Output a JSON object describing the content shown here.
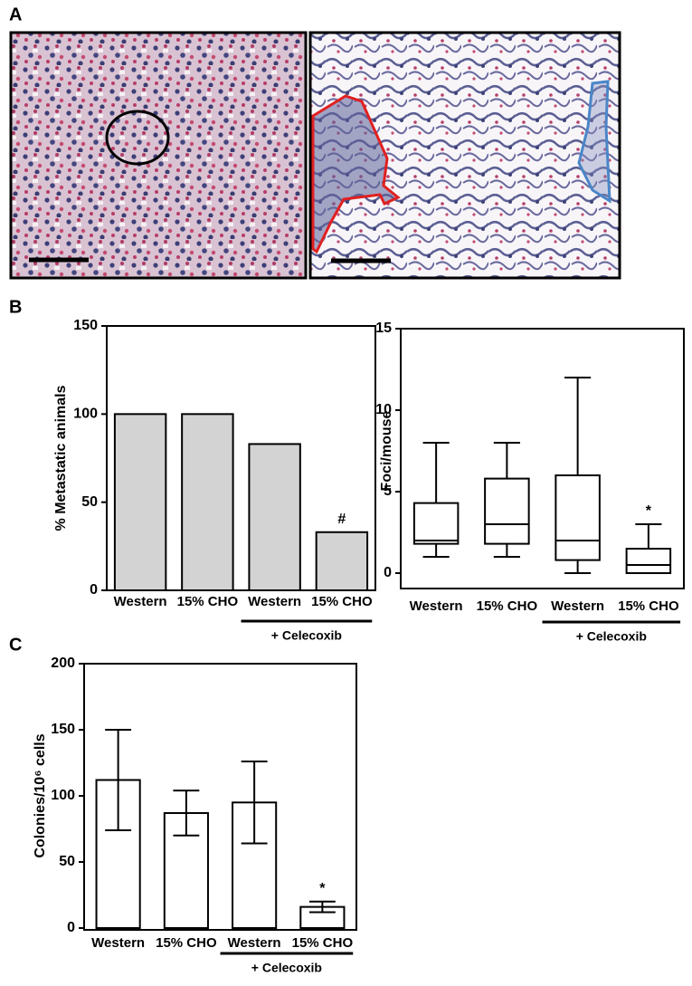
{
  "panel_labels": [
    "A",
    "B",
    "C"
  ],
  "chart_data": [
    {
      "type": "bar",
      "ylabel": "% Metastatic animals",
      "categories": [
        "Western",
        "15% CHO",
        "Western",
        "15% CHO"
      ],
      "values": [
        100,
        100,
        83,
        33
      ],
      "color": "#d3d3d3",
      "significance": [
        null,
        null,
        null,
        "#"
      ],
      "group_label": "+ Celecoxib",
      "ylim": [
        0,
        150
      ],
      "yticks": [
        0,
        50,
        100,
        150
      ]
    },
    {
      "type": "box",
      "ylabel": "Foci/mouse",
      "categories": [
        "Western",
        "15% CHO",
        "Western",
        "15% CHO"
      ],
      "min": [
        1,
        1,
        0,
        0
      ],
      "q1": [
        1.8,
        1.8,
        0.8,
        0
      ],
      "median": [
        2,
        3,
        2,
        0.5
      ],
      "q3": [
        4.3,
        5.8,
        6,
        1.5
      ],
      "max": [
        8,
        8,
        12,
        3
      ],
      "color": "#ffffff",
      "significance": [
        null,
        null,
        null,
        "*"
      ],
      "group_label": "+ Celecoxib",
      "ylim": [
        0,
        15
      ],
      "yticks": [
        0,
        5,
        10,
        15
      ]
    },
    {
      "type": "errorbar",
      "ylabel": "Colonies/10⁶ cells",
      "categories": [
        "Western",
        "15% CHO",
        "Western",
        "15% CHO"
      ],
      "values": [
        112,
        87,
        95,
        16
      ],
      "errors": [
        38,
        17,
        31,
        4
      ],
      "color": "#ffffff",
      "significance": [
        null,
        null,
        null,
        "*"
      ],
      "group_label": "+ Celecoxib",
      "ylim": [
        0,
        200
      ],
      "yticks": [
        0,
        50,
        100,
        150,
        200
      ]
    }
  ]
}
